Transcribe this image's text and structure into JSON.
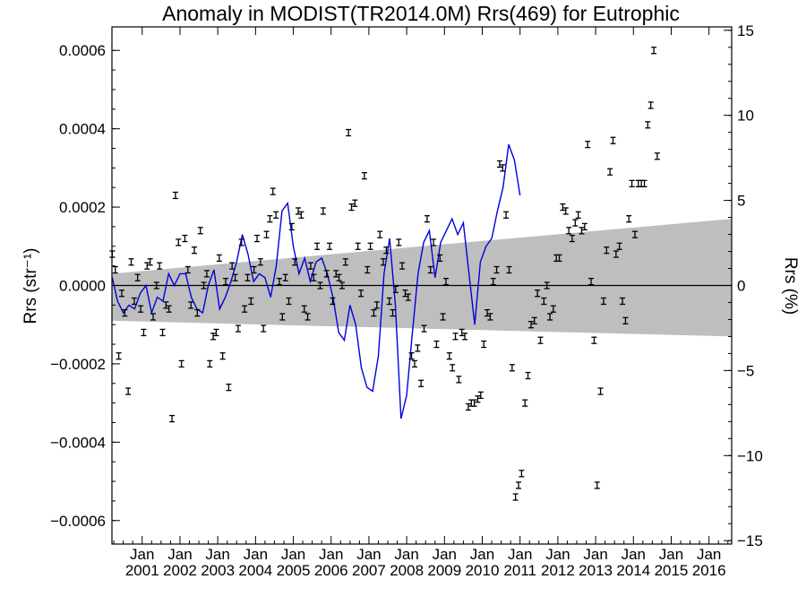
{
  "chart_data": {
    "type": "scatter",
    "title": "Anomaly in MODIST(TR2014.0M) Rrs(469) for Eutrophic",
    "ylabel_left": "Rrs (str⁻¹)",
    "ylabel_right": "Rrs (%)",
    "xlim": [
      2000.2,
      2016.6
    ],
    "ylim_left": [
      -0.00066,
      0.00066
    ],
    "ylim_right": [
      -15.2,
      15.2
    ],
    "xticks": [
      {
        "x": 2001,
        "month": "Jan",
        "year": "2001"
      },
      {
        "x": 2002,
        "month": "Jan",
        "year": "2002"
      },
      {
        "x": 2003,
        "month": "Jan",
        "year": "2003"
      },
      {
        "x": 2004,
        "month": "Jan",
        "year": "2004"
      },
      {
        "x": 2005,
        "month": "Jan",
        "year": "2005"
      },
      {
        "x": 2006,
        "month": "Jan",
        "year": "2006"
      },
      {
        "x": 2007,
        "month": "Jan",
        "year": "2007"
      },
      {
        "x": 2008,
        "month": "Jan",
        "year": "2008"
      },
      {
        "x": 2009,
        "month": "Jan",
        "year": "2009"
      },
      {
        "x": 2010,
        "month": "Jan",
        "year": "2010"
      },
      {
        "x": 2011,
        "month": "Jan",
        "year": "2011"
      },
      {
        "x": 2012,
        "month": "Jan",
        "year": "2012"
      },
      {
        "x": 2013,
        "month": "Jan",
        "year": "2013"
      },
      {
        "x": 2014,
        "month": "Jan",
        "year": "2014"
      },
      {
        "x": 2015,
        "month": "Jan",
        "year": "2015"
      },
      {
        "x": 2016,
        "month": "Jan",
        "year": "2016"
      }
    ],
    "yticks_left": [
      {
        "v": 0.0006,
        "label": "0.0006"
      },
      {
        "v": 0.0004,
        "label": "0.0004"
      },
      {
        "v": 0.0002,
        "label": "0.0002"
      },
      {
        "v": 0.0,
        "label": "0.0000"
      },
      {
        "v": -0.0002,
        "label": "−0.0002"
      },
      {
        "v": -0.0004,
        "label": "−0.0004"
      },
      {
        "v": -0.0006,
        "label": "−0.0006"
      }
    ],
    "yticks_right": [
      {
        "v": 15,
        "label": "15"
      },
      {
        "v": 10,
        "label": "10"
      },
      {
        "v": 5,
        "label": "5"
      },
      {
        "v": 0,
        "label": "0"
      },
      {
        "v": -5,
        "label": "−5"
      },
      {
        "v": -10,
        "label": "−10"
      },
      {
        "v": -15,
        "label": "−15"
      }
    ],
    "band": {
      "color": "#bebebe",
      "upper": [
        [
          2000.2,
          3e-05
        ],
        [
          2016.6,
          0.00017
        ]
      ],
      "lower": [
        [
          2000.2,
          -9e-05
        ],
        [
          2016.6,
          -0.00013
        ]
      ]
    },
    "zero_line": 0,
    "series": [
      {
        "kind": "errorbar",
        "color": "#000000",
        "err": 8e-06,
        "points": [
          [
            2000.21,
            8e-05
          ],
          [
            2000.29,
            4e-05
          ],
          [
            2000.38,
            -0.00018
          ],
          [
            2000.46,
            -2e-05
          ],
          [
            2000.54,
            -7e-05
          ],
          [
            2000.63,
            -0.00027
          ],
          [
            2000.71,
            6e-05
          ],
          [
            2000.79,
            -4e-05
          ],
          [
            2000.88,
            2e-05
          ],
          [
            2000.96,
            -6e-05
          ],
          [
            2001.04,
            -0.00012
          ],
          [
            2001.13,
            5e-05
          ],
          [
            2001.21,
            6e-05
          ],
          [
            2001.29,
            -8e-05
          ],
          [
            2001.38,
            0.0
          ],
          [
            2001.46,
            5e-05
          ],
          [
            2001.54,
            -0.00012
          ],
          [
            2001.63,
            -5e-05
          ],
          [
            2001.71,
            -6e-05
          ],
          [
            2001.79,
            -0.00034
          ],
          [
            2001.88,
            0.00023
          ],
          [
            2001.96,
            0.00011
          ],
          [
            2002.04,
            -0.0002
          ],
          [
            2002.13,
            0.00012
          ],
          [
            2002.21,
            4e-05
          ],
          [
            2002.29,
            -5e-05
          ],
          [
            2002.38,
            9e-05
          ],
          [
            2002.46,
            -7e-05
          ],
          [
            2002.54,
            0.00014
          ],
          [
            2002.63,
            0.0
          ],
          [
            2002.71,
            3e-05
          ],
          [
            2002.79,
            -0.0002
          ],
          [
            2002.88,
            -0.00013
          ],
          [
            2002.96,
            -0.00012
          ],
          [
            2003.04,
            7e-05
          ],
          [
            2003.13,
            -0.00018
          ],
          [
            2003.21,
            1e-05
          ],
          [
            2003.29,
            -0.00026
          ],
          [
            2003.38,
            5e-05
          ],
          [
            2003.46,
            2e-05
          ],
          [
            2003.54,
            -0.00011
          ],
          [
            2003.63,
            0.00011
          ],
          [
            2003.71,
            -6e-05
          ],
          [
            2003.79,
            2e-05
          ],
          [
            2003.88,
            -4e-05
          ],
          [
            2003.96,
            4e-05
          ],
          [
            2004.04,
            0.00012
          ],
          [
            2004.13,
            6e-05
          ],
          [
            2004.21,
            -0.00011
          ],
          [
            2004.29,
            0.00013
          ],
          [
            2004.38,
            0.00017
          ],
          [
            2004.46,
            0.00024
          ],
          [
            2004.54,
            0.00018
          ],
          [
            2004.63,
            1e-05
          ],
          [
            2004.71,
            -8e-05
          ],
          [
            2004.79,
            2e-05
          ],
          [
            2004.88,
            -4e-05
          ],
          [
            2004.96,
            0.00015
          ],
          [
            2005.04,
            6e-05
          ],
          [
            2005.13,
            0.00019
          ],
          [
            2005.21,
            0.00018
          ],
          [
            2005.29,
            -6e-05
          ],
          [
            2005.38,
            -8e-05
          ],
          [
            2005.46,
            5e-05
          ],
          [
            2005.54,
            2e-05
          ],
          [
            2005.63,
            0.0001
          ],
          [
            2005.71,
            0.0
          ],
          [
            2005.79,
            0.00019
          ],
          [
            2005.88,
            3e-05
          ],
          [
            2005.96,
            0.0001
          ],
          [
            2006.04,
            -4e-05
          ],
          [
            2006.13,
            3e-05
          ],
          [
            2006.21,
            2e-05
          ],
          [
            2006.29,
            0.0
          ],
          [
            2006.38,
            6e-05
          ],
          [
            2006.46,
            0.00039
          ],
          [
            2006.54,
            0.0002
          ],
          [
            2006.63,
            0.00021
          ],
          [
            2006.71,
            0.0001
          ],
          [
            2006.79,
            -2e-05
          ],
          [
            2006.88,
            0.00028
          ],
          [
            2006.96,
            4e-05
          ],
          [
            2007.04,
            0.0001
          ],
          [
            2007.13,
            -7e-05
          ],
          [
            2007.21,
            -5e-05
          ],
          [
            2007.29,
            0.00013
          ],
          [
            2007.38,
            6e-05
          ],
          [
            2007.46,
            9e-05
          ],
          [
            2007.54,
            -4e-05
          ],
          [
            2007.63,
            -7e-05
          ],
          [
            2007.71,
            -1e-05
          ],
          [
            2007.79,
            0.00011
          ],
          [
            2007.88,
            5e-05
          ],
          [
            2007.96,
            -2e-05
          ],
          [
            2008.04,
            -3e-05
          ],
          [
            2008.13,
            -0.00018
          ],
          [
            2008.21,
            -0.0002
          ],
          [
            2008.29,
            -0.00016
          ],
          [
            2008.38,
            -0.00025
          ],
          [
            2008.46,
            -0.00011
          ],
          [
            2008.54,
            0.00017
          ],
          [
            2008.63,
            4e-05
          ],
          [
            2008.71,
            0.00011
          ],
          [
            2008.79,
            -0.00015
          ],
          [
            2008.88,
            7e-05
          ],
          [
            2008.96,
            -8e-05
          ],
          [
            2009.04,
            1e-05
          ],
          [
            2009.13,
            -0.00018
          ],
          [
            2009.21,
            -0.00021
          ],
          [
            2009.29,
            -0.00013
          ],
          [
            2009.38,
            -0.00024
          ],
          [
            2009.46,
            -0.00012
          ],
          [
            2009.54,
            -0.00013
          ],
          [
            2009.63,
            -0.00031
          ],
          [
            2009.71,
            -0.0003
          ],
          [
            2009.79,
            -0.0003
          ],
          [
            2009.88,
            -0.00029
          ],
          [
            2009.96,
            -0.00028
          ],
          [
            2010.04,
            -0.00015
          ],
          [
            2010.13,
            -7e-05
          ],
          [
            2010.21,
            -8e-05
          ],
          [
            2010.29,
            1e-05
          ],
          [
            2010.38,
            4e-05
          ],
          [
            2010.46,
            0.00031
          ],
          [
            2010.54,
            0.0003
          ],
          [
            2010.63,
            0.00018
          ],
          [
            2010.71,
            4e-05
          ],
          [
            2010.79,
            -0.00021
          ],
          [
            2010.88,
            -0.00054
          ],
          [
            2010.96,
            -0.00051
          ],
          [
            2011.04,
            -0.00048
          ],
          [
            2011.13,
            -0.0003
          ],
          [
            2011.21,
            -0.00023
          ],
          [
            2011.29,
            -0.0001
          ],
          [
            2011.38,
            -9e-05
          ],
          [
            2011.46,
            -2e-05
          ],
          [
            2011.54,
            -0.00014
          ],
          [
            2011.63,
            -4e-05
          ],
          [
            2011.71,
            0.0
          ],
          [
            2011.79,
            -8e-05
          ],
          [
            2011.88,
            -6e-05
          ],
          [
            2011.96,
            7e-05
          ],
          [
            2012.04,
            7e-05
          ],
          [
            2012.13,
            0.0002
          ],
          [
            2012.21,
            0.00019
          ],
          [
            2012.29,
            0.00014
          ],
          [
            2012.38,
            0.00012
          ],
          [
            2012.46,
            0.00016
          ],
          [
            2012.54,
            0.00018
          ],
          [
            2012.63,
            0.00014
          ],
          [
            2012.71,
            0.00015
          ],
          [
            2012.79,
            0.00036
          ],
          [
            2012.88,
            1e-05
          ],
          [
            2012.96,
            -0.00014
          ],
          [
            2013.04,
            -0.00051
          ],
          [
            2013.13,
            -0.00027
          ],
          [
            2013.21,
            -4e-05
          ],
          [
            2013.29,
            9e-05
          ],
          [
            2013.38,
            0.00029
          ],
          [
            2013.46,
            0.00037
          ],
          [
            2013.54,
            8e-05
          ],
          [
            2013.63,
            0.0001
          ],
          [
            2013.71,
            -4e-05
          ],
          [
            2013.79,
            -9e-05
          ],
          [
            2013.88,
            0.00017
          ],
          [
            2013.96,
            0.00026
          ],
          [
            2014.04,
            0.00013
          ],
          [
            2014.13,
            0.00026
          ],
          [
            2014.21,
            0.00026
          ],
          [
            2014.29,
            0.00026
          ],
          [
            2014.38,
            0.00041
          ],
          [
            2014.46,
            0.00046
          ],
          [
            2014.54,
            0.0006
          ],
          [
            2014.63,
            0.00033
          ]
        ]
      },
      {
        "kind": "line",
        "color": "#0000dd",
        "points": [
          [
            2000.21,
            2e-05
          ],
          [
            2000.35,
            -4e-05
          ],
          [
            2000.5,
            -7e-05
          ],
          [
            2000.65,
            -5e-05
          ],
          [
            2000.8,
            -6e-05
          ],
          [
            2000.95,
            -2e-05
          ],
          [
            2001.1,
            0.0
          ],
          [
            2001.25,
            -7e-05
          ],
          [
            2001.4,
            -3e-05
          ],
          [
            2001.55,
            -4e-05
          ],
          [
            2001.7,
            3e-05
          ],
          [
            2001.85,
            0.0
          ],
          [
            2002.0,
            3e-05
          ],
          [
            2002.15,
            3e-05
          ],
          [
            2002.3,
            -3e-05
          ],
          [
            2002.45,
            -6e-05
          ],
          [
            2002.6,
            -7e-05
          ],
          [
            2002.75,
            0.0
          ],
          [
            2002.9,
            4e-05
          ],
          [
            2003.05,
            -6e-05
          ],
          [
            2003.2,
            -3e-05
          ],
          [
            2003.35,
            1e-05
          ],
          [
            2003.5,
            6e-05
          ],
          [
            2003.65,
            0.00013
          ],
          [
            2003.8,
            8e-05
          ],
          [
            2003.95,
            1e-05
          ],
          [
            2004.1,
            3e-05
          ],
          [
            2004.25,
            2e-05
          ],
          [
            2004.4,
            -3e-05
          ],
          [
            2004.55,
            5e-05
          ],
          [
            2004.7,
            0.00019
          ],
          [
            2004.85,
            0.00021
          ],
          [
            2005.0,
            0.0001
          ],
          [
            2005.15,
            3e-05
          ],
          [
            2005.3,
            7e-05
          ],
          [
            2005.45,
            1e-05
          ],
          [
            2005.6,
            6e-05
          ],
          [
            2005.75,
            7e-05
          ],
          [
            2005.9,
            3e-05
          ],
          [
            2006.05,
            -3e-05
          ],
          [
            2006.2,
            -0.00012
          ],
          [
            2006.35,
            -0.00014
          ],
          [
            2006.5,
            -5e-05
          ],
          [
            2006.65,
            -0.0001
          ],
          [
            2006.8,
            -0.00021
          ],
          [
            2006.95,
            -0.00026
          ],
          [
            2007.1,
            -0.00027
          ],
          [
            2007.25,
            -0.00018
          ],
          [
            2007.4,
            3e-05
          ],
          [
            2007.55,
            0.00012
          ],
          [
            2007.7,
            -5e-05
          ],
          [
            2007.85,
            -0.00034
          ],
          [
            2008.0,
            -0.00028
          ],
          [
            2008.15,
            -0.00012
          ],
          [
            2008.3,
            3e-05
          ],
          [
            2008.45,
            0.00011
          ],
          [
            2008.6,
            0.00014
          ],
          [
            2008.75,
            2e-05
          ],
          [
            2008.9,
            0.00011
          ],
          [
            2009.05,
            0.00014
          ],
          [
            2009.2,
            0.00017
          ],
          [
            2009.35,
            0.00013
          ],
          [
            2009.5,
            0.00016
          ],
          [
            2009.65,
            3e-05
          ],
          [
            2009.8,
            -0.0001
          ],
          [
            2009.95,
            6e-05
          ],
          [
            2010.1,
            0.0001
          ],
          [
            2010.25,
            0.00012
          ],
          [
            2010.4,
            0.00019
          ],
          [
            2010.55,
            0.00025
          ],
          [
            2010.7,
            0.00036
          ],
          [
            2010.85,
            0.00032
          ],
          [
            2011.0,
            0.00023
          ]
        ]
      }
    ]
  }
}
